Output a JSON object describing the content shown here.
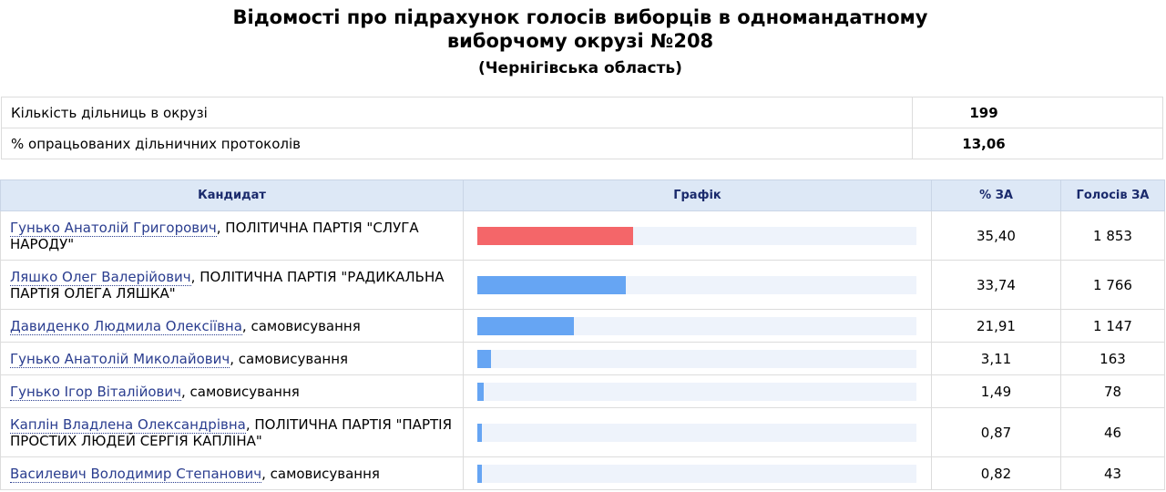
{
  "header": {
    "title_line1": "Відомості про підрахунок голосів виборців в одномандатному",
    "title_line2": "виборчому окрузі №208",
    "subtitle": "(Чернігівська область)"
  },
  "summary": [
    {
      "label": "Кількість дільниць в окрузі",
      "value": "199"
    },
    {
      "label": "% опрацьованих дільничних протоколів",
      "value": "13,06"
    }
  ],
  "columns": {
    "candidate": "Кандидат",
    "chart": "Графік",
    "percent": "% ЗА",
    "votes": "Голосів ЗА"
  },
  "colors": {
    "lead_bar": "#f46669",
    "bar": "#66a5f3",
    "track": "#eef3fb",
    "header_bg": "#dde8f6"
  },
  "candidates": [
    {
      "name": "Гунько Анатолій Григорович",
      "affiliation": ", ПОЛІТИЧНА ПАРТІЯ \"СЛУГА НАРОДУ\"",
      "percent": "35,40",
      "votes": "1 853",
      "share": 35.4
    },
    {
      "name": "Ляшко Олег Валерійович",
      "affiliation": ", ПОЛІТИЧНА ПАРТІЯ \"РАДИКАЛЬНА ПАРТІЯ ОЛЕГА ЛЯШКА\"",
      "percent": "33,74",
      "votes": "1 766",
      "share": 33.74
    },
    {
      "name": "Давиденко Людмила Олексіївна",
      "affiliation": ", самовисування",
      "percent": "21,91",
      "votes": "1 147",
      "share": 21.91
    },
    {
      "name": "Гунько Анатолій Миколайович",
      "affiliation": ", самовисування",
      "percent": "3,11",
      "votes": "163",
      "share": 3.11
    },
    {
      "name": "Гунько Ігор Віталійович",
      "affiliation": ", самовисування",
      "percent": "1,49",
      "votes": "78",
      "share": 1.49
    },
    {
      "name": "Каплін Владлена Олександрівна",
      "affiliation": ", ПОЛІТИЧНА ПАРТІЯ \"ПАРТІЯ ПРОСТИХ ЛЮДЕЙ СЕРГІЯ КАПЛІНА\"",
      "percent": "0,87",
      "votes": "46",
      "share": 0.87
    },
    {
      "name": "Василевич Володимир Степанович",
      "affiliation": ", самовисування",
      "percent": "0,82",
      "votes": "43",
      "share": 0.82
    }
  ]
}
